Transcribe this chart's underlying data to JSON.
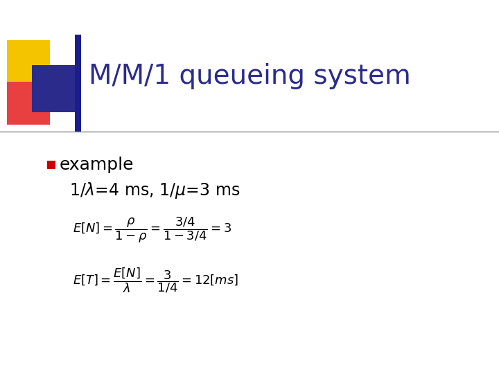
{
  "title": "M/M/1 queueing system",
  "title_color": "#2B2B8C",
  "title_fontsize": 28,
  "background_color": "#FFFFFF",
  "bullet_text": "example",
  "sub_bullet_text": "1/λ=4 ms, 1/μ=3 ms",
  "header_bar_color": "#1C1C8C",
  "header_line_color": "#888888",
  "gold_square_color": "#F5C400",
  "red_square_color": "#E84040",
  "blue_square_color": "#2B2B8C",
  "bullet_color": "#CC0000",
  "body_text_color": "#000000",
  "eq_color": "#000000",
  "eq_fontsize": 13,
  "bullet_fontsize": 18,
  "sub_fontsize": 17
}
